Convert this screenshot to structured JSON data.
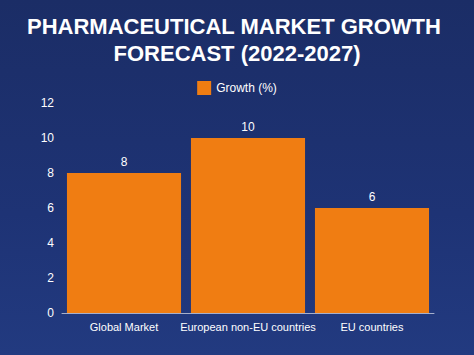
{
  "chart_data": {
    "type": "bar",
    "title": "PHARMACEUTICAL MARKET GROWTH FORECAST (2022-2027)",
    "categories": [
      "Global Market",
      "European non-EU countries",
      "EU countries"
    ],
    "series": [
      {
        "name": "Growth (%)",
        "color": "#f07d12",
        "values": [
          8,
          10,
          6
        ]
      }
    ],
    "ylim": [
      0,
      12
    ],
    "yticks": [
      0,
      2,
      4,
      6,
      8,
      10,
      12
    ],
    "grid": false,
    "legend": "top",
    "data_labels": true
  }
}
